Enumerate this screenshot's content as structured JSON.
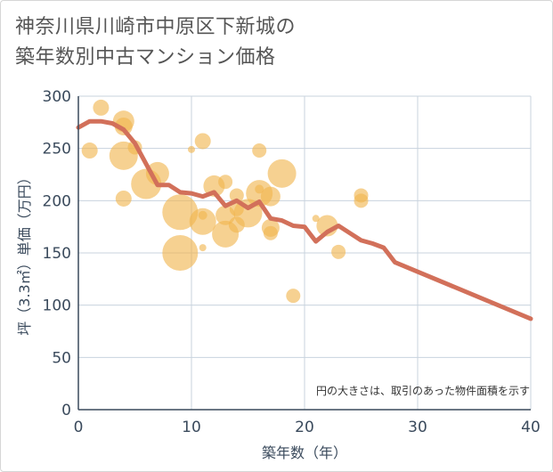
{
  "chart_data": {
    "type": "scatter",
    "title": "神奈川県川崎市中原区下新城の\n築年数別中古マンション価格",
    "xlabel": "築年数（年）",
    "ylabel": "坪（3.3㎡）単価（万円）",
    "note": "円の大きさは、取引のあった物件面積を示す",
    "xlim": [
      0,
      40
    ],
    "ylim": [
      0,
      300
    ],
    "x_ticks": [
      "0",
      "10",
      "20",
      "30",
      "40"
    ],
    "y_ticks": [
      "0",
      "50",
      "100",
      "150",
      "200",
      "250",
      "300"
    ],
    "grid": true,
    "colors": {
      "bubble": "#f0b54e",
      "line": "#d2705a",
      "grid": "#c8d3de",
      "axis": "#3a4a5c"
    },
    "series": [
      {
        "kind": "bubble",
        "points": [
          {
            "x": 1,
            "y": 248,
            "s": 9
          },
          {
            "x": 2,
            "y": 289,
            "s": 9
          },
          {
            "x": 4,
            "y": 276,
            "s": 12
          },
          {
            "x": 4,
            "y": 271,
            "s": 10
          },
          {
            "x": 4,
            "y": 243,
            "s": 16
          },
          {
            "x": 4,
            "y": 202,
            "s": 9
          },
          {
            "x": 5,
            "y": 251,
            "s": 8
          },
          {
            "x": 6,
            "y": 216,
            "s": 17
          },
          {
            "x": 7,
            "y": 226,
            "s": 13
          },
          {
            "x": 9,
            "y": 189,
            "s": 20
          },
          {
            "x": 9,
            "y": 150,
            "s": 20
          },
          {
            "x": 10,
            "y": 249,
            "s": 4
          },
          {
            "x": 11,
            "y": 257,
            "s": 9
          },
          {
            "x": 11,
            "y": 186,
            "s": 5
          },
          {
            "x": 11,
            "y": 180,
            "s": 15
          },
          {
            "x": 11,
            "y": 155,
            "s": 4
          },
          {
            "x": 12,
            "y": 214,
            "s": 12
          },
          {
            "x": 13,
            "y": 218,
            "s": 8
          },
          {
            "x": 13,
            "y": 186,
            "s": 11
          },
          {
            "x": 13,
            "y": 168,
            "s": 15
          },
          {
            "x": 14,
            "y": 205,
            "s": 8
          },
          {
            "x": 14,
            "y": 192,
            "s": 8
          },
          {
            "x": 14,
            "y": 177,
            "s": 9
          },
          {
            "x": 15,
            "y": 188,
            "s": 16
          },
          {
            "x": 16,
            "y": 248,
            "s": 8
          },
          {
            "x": 16,
            "y": 211,
            "s": 5
          },
          {
            "x": 16,
            "y": 207,
            "s": 15
          },
          {
            "x": 17,
            "y": 204,
            "s": 11
          },
          {
            "x": 17,
            "y": 174,
            "s": 10
          },
          {
            "x": 17,
            "y": 169,
            "s": 8
          },
          {
            "x": 18,
            "y": 226,
            "s": 16
          },
          {
            "x": 19,
            "y": 109,
            "s": 8
          },
          {
            "x": 21,
            "y": 183,
            "s": 4
          },
          {
            "x": 22,
            "y": 176,
            "s": 12
          },
          {
            "x": 23,
            "y": 151,
            "s": 8
          },
          {
            "x": 25,
            "y": 205,
            "s": 8
          },
          {
            "x": 25,
            "y": 200,
            "s": 8
          }
        ]
      },
      {
        "kind": "line",
        "points": [
          {
            "x": 0,
            "y": 270
          },
          {
            "x": 1,
            "y": 276
          },
          {
            "x": 2,
            "y": 276
          },
          {
            "x": 3,
            "y": 274
          },
          {
            "x": 4,
            "y": 268
          },
          {
            "x": 5,
            "y": 255
          },
          {
            "x": 6,
            "y": 235
          },
          {
            "x": 7,
            "y": 215
          },
          {
            "x": 8,
            "y": 215
          },
          {
            "x": 9,
            "y": 208
          },
          {
            "x": 10,
            "y": 207
          },
          {
            "x": 11,
            "y": 204
          },
          {
            "x": 12,
            "y": 208
          },
          {
            "x": 13,
            "y": 195
          },
          {
            "x": 14,
            "y": 200
          },
          {
            "x": 15,
            "y": 193
          },
          {
            "x": 16,
            "y": 199
          },
          {
            "x": 17,
            "y": 183
          },
          {
            "x": 18,
            "y": 181
          },
          {
            "x": 19,
            "y": 176
          },
          {
            "x": 20,
            "y": 175
          },
          {
            "x": 21,
            "y": 161
          },
          {
            "x": 22,
            "y": 170
          },
          {
            "x": 23,
            "y": 176
          },
          {
            "x": 24,
            "y": 169
          },
          {
            "x": 25,
            "y": 162
          },
          {
            "x": 26,
            "y": 159
          },
          {
            "x": 27,
            "y": 155
          },
          {
            "x": 28,
            "y": 141
          },
          {
            "x": 40,
            "y": 87
          }
        ]
      }
    ]
  }
}
